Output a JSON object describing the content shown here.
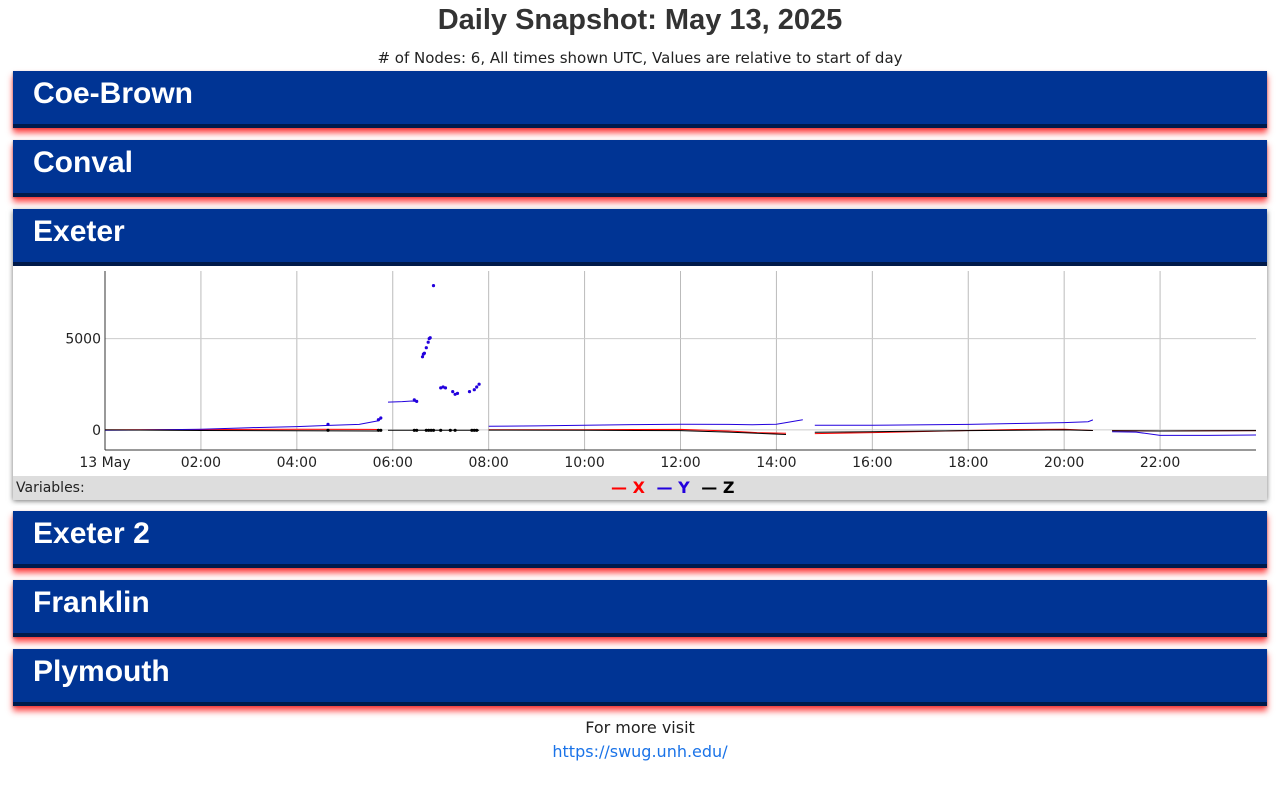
{
  "header": {
    "title": "Daily Snapshot: May 13, 2025",
    "subtitle": "# of Nodes: 6, All times shown UTC, Values are relative to start of day"
  },
  "nodes": [
    {
      "name": "Coe-Brown",
      "expanded": false
    },
    {
      "name": "Conval",
      "expanded": false
    },
    {
      "name": "Exeter",
      "expanded": true
    },
    {
      "name": "Exeter 2",
      "expanded": false
    },
    {
      "name": "Franklin",
      "expanded": false
    },
    {
      "name": "Plymouth",
      "expanded": false
    }
  ],
  "legend": {
    "label": "Variables:",
    "items": [
      {
        "name": "X",
        "color": "#ff0000"
      },
      {
        "name": "Y",
        "color": "#2200dd"
      },
      {
        "name": "Z",
        "color": "#000000"
      }
    ]
  },
  "footer": {
    "text": "For more visit",
    "link": "https://swug.unh.edu/"
  },
  "chart_data": {
    "type": "line",
    "node": "Exeter",
    "title": "",
    "xlabel": "",
    "ylabel": "",
    "x_unit": "hours UTC",
    "xlim": [
      0,
      24
    ],
    "ylim": [
      -1100,
      8700
    ],
    "grid": true,
    "x_ticks": [
      0,
      2,
      4,
      6,
      8,
      10,
      12,
      14,
      16,
      18,
      20,
      22
    ],
    "x_tick_labels": [
      "13 May",
      "02:00",
      "04:00",
      "06:00",
      "08:00",
      "10:00",
      "12:00",
      "14:00",
      "16:00",
      "18:00",
      "20:00",
      "22:00"
    ],
    "y_ticks": [
      0,
      5000
    ],
    "y_tick_labels": [
      "0",
      "5000"
    ],
    "series": [
      {
        "name": "X",
        "color": "#ff0000",
        "segments": [
          [
            [
              0,
              0
            ],
            [
              2,
              20
            ],
            [
              4,
              40
            ],
            [
              5.5,
              30
            ],
            [
              5.7,
              20
            ]
          ],
          [
            [
              8,
              10
            ],
            [
              10,
              10
            ],
            [
              11,
              20
            ],
            [
              12,
              30
            ],
            [
              13,
              -60
            ],
            [
              13.6,
              -150
            ],
            [
              14.2,
              -180
            ]
          ],
          [
            [
              14.8,
              -200
            ],
            [
              16,
              -150
            ],
            [
              18,
              -30
            ],
            [
              19,
              20
            ],
            [
              20,
              40
            ],
            [
              20.6,
              -30
            ]
          ],
          [
            [
              21,
              -40
            ],
            [
              22,
              -60
            ],
            [
              23,
              -50
            ],
            [
              24,
              -40
            ]
          ]
        ],
        "points": []
      },
      {
        "name": "Y",
        "color": "#2200dd",
        "segments": [
          [
            [
              0,
              -20
            ],
            [
              1,
              0
            ],
            [
              2,
              40
            ],
            [
              3,
              120
            ],
            [
              4,
              180
            ],
            [
              4.6,
              240
            ],
            [
              5.3,
              300
            ],
            [
              5.7,
              500
            ],
            [
              5.75,
              600
            ]
          ],
          [
            [
              5.9,
              1520
            ],
            [
              6.2,
              1550
            ],
            [
              6.4,
              1580
            ],
            [
              6.5,
              1550
            ]
          ],
          [
            [
              8,
              200
            ],
            [
              9,
              220
            ],
            [
              10,
              250
            ],
            [
              11,
              290
            ],
            [
              12,
              310
            ],
            [
              13,
              300
            ],
            [
              13.5,
              280
            ],
            [
              14,
              310
            ],
            [
              14.2,
              400
            ],
            [
              14.55,
              560
            ]
          ],
          [
            [
              14.8,
              250
            ],
            [
              16,
              250
            ],
            [
              18,
              300
            ],
            [
              19,
              350
            ],
            [
              20,
              400
            ],
            [
              20.5,
              450
            ],
            [
              20.6,
              550
            ]
          ],
          [
            [
              21,
              -100
            ],
            [
              21.5,
              -120
            ],
            [
              22,
              -300
            ],
            [
              23,
              -300
            ],
            [
              24,
              -280
            ]
          ]
        ],
        "points": [
          [
            4.65,
            300
          ],
          [
            5.7,
            560
          ],
          [
            5.75,
            650
          ],
          [
            6.45,
            1650
          ],
          [
            6.5,
            1560
          ],
          [
            6.62,
            4000
          ],
          [
            6.64,
            4150
          ],
          [
            6.66,
            4200
          ],
          [
            6.7,
            4500
          ],
          [
            6.74,
            4800
          ],
          [
            6.76,
            5000
          ],
          [
            6.78,
            5050
          ],
          [
            6.85,
            7900
          ],
          [
            7.0,
            2300
          ],
          [
            7.05,
            2350
          ],
          [
            7.1,
            2300
          ],
          [
            7.25,
            2100
          ],
          [
            7.3,
            1950
          ],
          [
            7.35,
            2000
          ],
          [
            7.6,
            2100
          ],
          [
            7.7,
            2200
          ],
          [
            7.75,
            2350
          ],
          [
            7.8,
            2500
          ]
        ]
      },
      {
        "name": "Z",
        "color": "#000000",
        "segments": [
          [
            [
              0,
              0
            ],
            [
              2,
              -30
            ],
            [
              4,
              -50
            ],
            [
              5.7,
              -60
            ]
          ],
          [
            [
              5.9,
              -20
            ],
            [
              7.8,
              -20
            ]
          ],
          [
            [
              8,
              -10
            ],
            [
              10,
              -20
            ],
            [
              12,
              -40
            ],
            [
              13,
              -120
            ],
            [
              14.2,
              -250
            ]
          ],
          [
            [
              14.8,
              -130
            ],
            [
              16,
              -100
            ],
            [
              18,
              -40
            ],
            [
              20,
              0
            ],
            [
              20.6,
              -30
            ]
          ],
          [
            [
              21,
              -50
            ],
            [
              22,
              -60
            ],
            [
              24,
              -40
            ]
          ]
        ],
        "points": [
          [
            4.65,
            -20
          ],
          [
            5.7,
            -20
          ],
          [
            5.75,
            -20
          ],
          [
            6.45,
            -20
          ],
          [
            6.5,
            -20
          ],
          [
            6.7,
            -20
          ],
          [
            6.75,
            -20
          ],
          [
            6.8,
            -20
          ],
          [
            6.85,
            -20
          ],
          [
            7.0,
            -20
          ],
          [
            7.2,
            -20
          ],
          [
            7.3,
            -20
          ],
          [
            7.65,
            -20
          ],
          [
            7.7,
            -20
          ],
          [
            7.75,
            -20
          ]
        ]
      }
    ]
  }
}
